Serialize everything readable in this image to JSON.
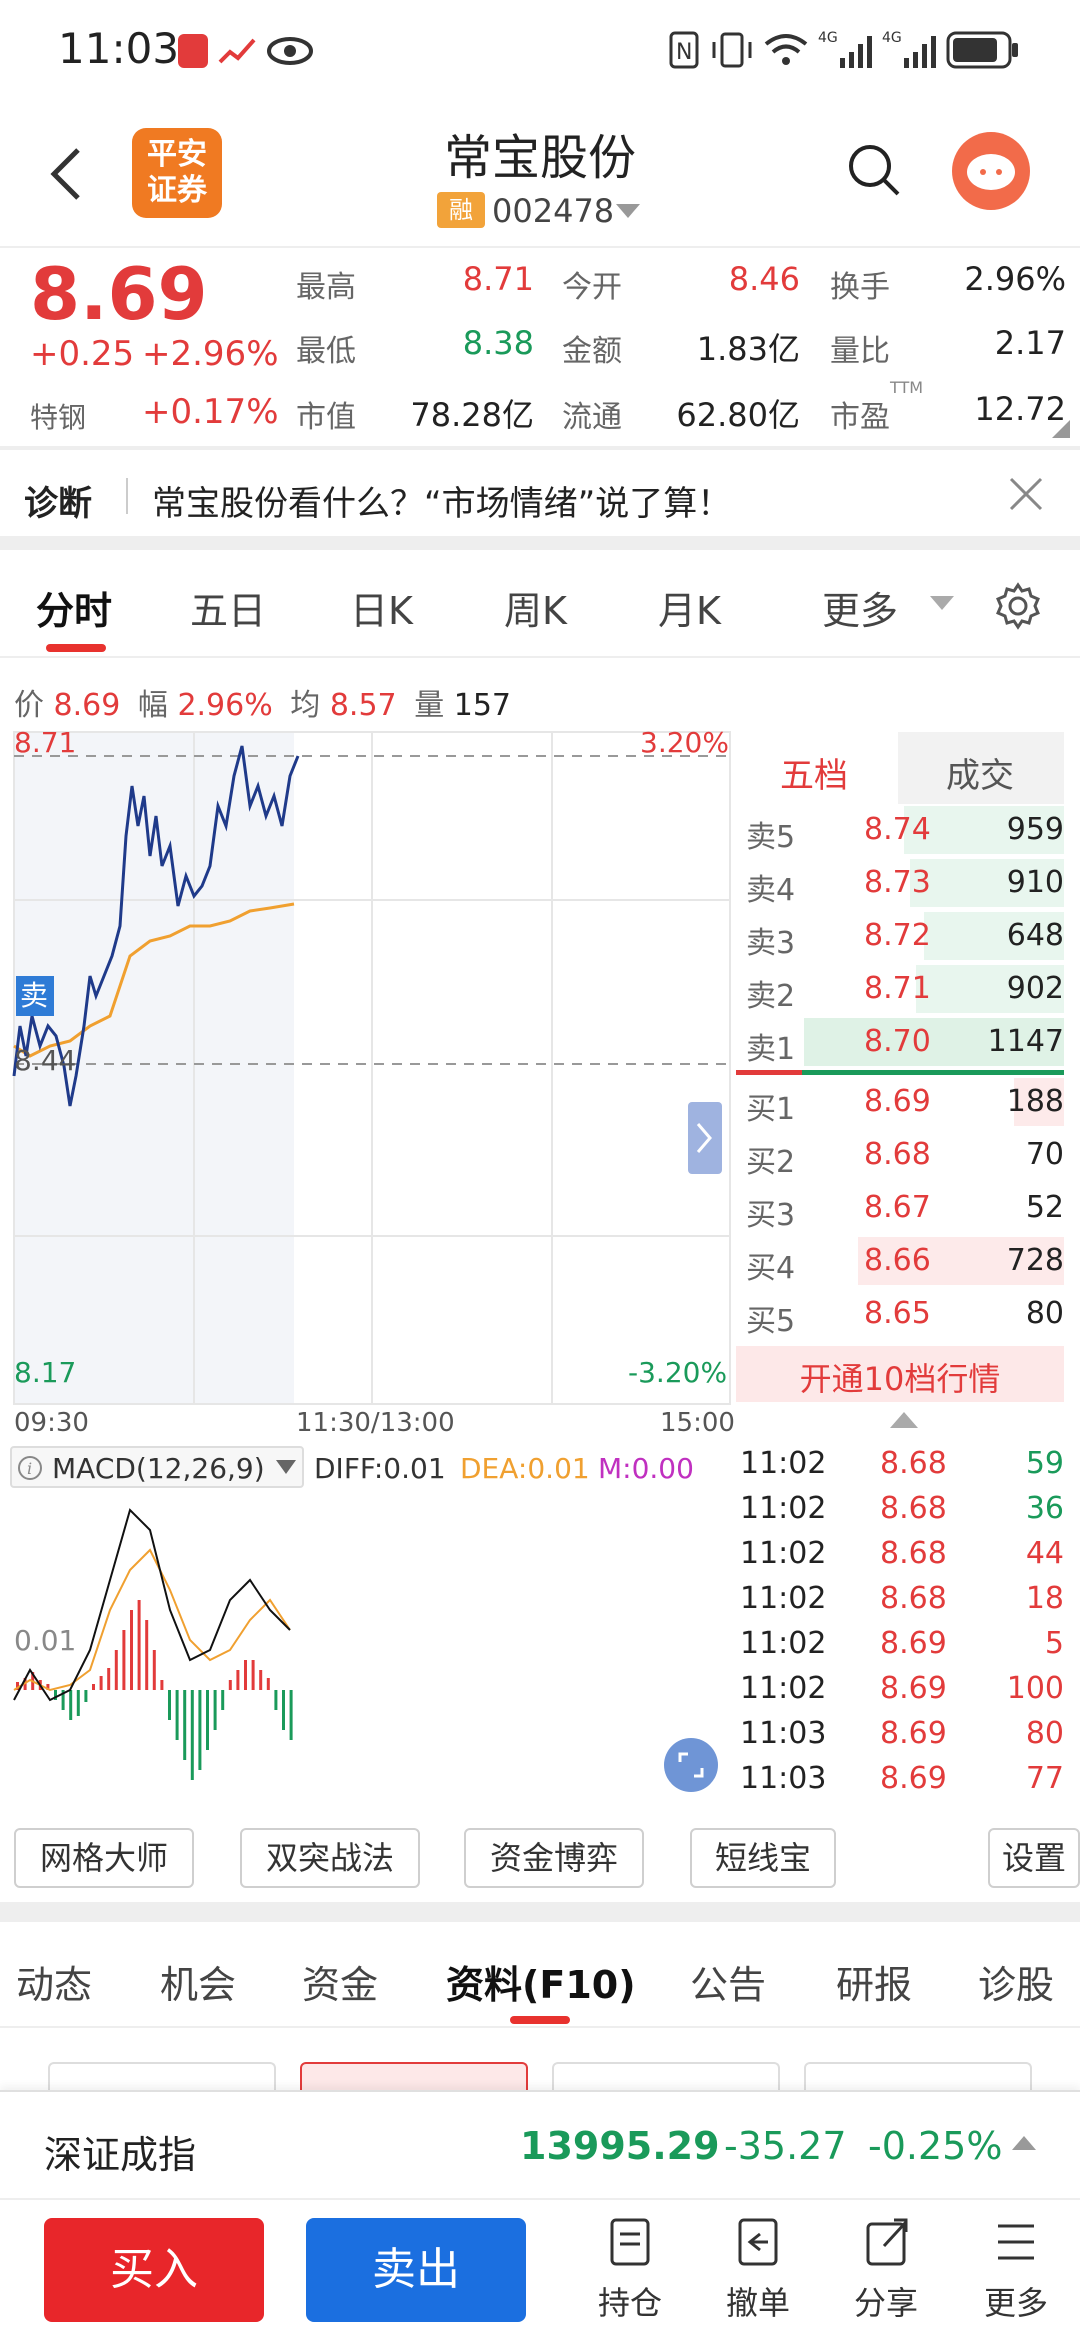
{
  "status_bar": {
    "time": "11:03"
  },
  "header": {
    "logo_line1": "平安",
    "logo_line2": "证券",
    "name": "常宝股份",
    "rong_tag": "融",
    "code": "002478"
  },
  "quote": {
    "price": "8.69",
    "change": "+0.25",
    "change_pct": "+2.96%",
    "sector_label": "特钢",
    "sector_pct": "+0.17%",
    "rows": [
      [
        {
          "label": "最高",
          "value": "8.71",
          "color": "red"
        },
        {
          "label": "今开",
          "value": "8.46",
          "color": "red"
        },
        {
          "label": "换手",
          "value": "2.96%",
          "color": "dark"
        }
      ],
      [
        {
          "label": "最低",
          "value": "8.38",
          "color": "green"
        },
        {
          "label": "金额",
          "value": "1.83亿",
          "color": "dark"
        },
        {
          "label": "量比",
          "value": "2.17",
          "color": "dark"
        }
      ],
      [
        {
          "label": "市值",
          "value": "78.28亿",
          "color": "dark"
        },
        {
          "label": "流通",
          "value": "62.80亿",
          "color": "dark"
        },
        {
          "label": "市盈",
          "value": "12.72",
          "color": "dark"
        }
      ]
    ],
    "ttm": "TTM"
  },
  "notice": {
    "label": "诊断",
    "text": "常宝股份看什么？“市场情绪”说了算！"
  },
  "chart_tabs": [
    "分时",
    "五日",
    "日K",
    "周K",
    "月K",
    "更多"
  ],
  "info_line": {
    "price_label": "价",
    "price": "8.69",
    "amp_label": "幅",
    "amp": "2.96%",
    "avg_label": "均",
    "avg": "8.57",
    "vol_label": "量",
    "vol": "157"
  },
  "chart": {
    "top_price": "8.71",
    "top_pct": "3.20%",
    "bottom_price": "8.17",
    "bottom_pct": "-3.20%",
    "mid_price": "8.44",
    "sell_tag": "卖",
    "times": [
      "09:30",
      "11:30/13:00",
      "15:00"
    ],
    "macd_title": "MACD(12,26,9)",
    "diff": "DIFF:0.01",
    "dea": "DEA:0.01",
    "m": "M:0.00",
    "macd_label": "0.01"
  },
  "orderbook": {
    "tab1": "五档",
    "tab2": "成交",
    "asks": [
      {
        "label": "卖5",
        "price": "8.74",
        "vol": "959"
      },
      {
        "label": "卖4",
        "price": "8.73",
        "vol": "910"
      },
      {
        "label": "卖3",
        "price": "8.72",
        "vol": "648"
      },
      {
        "label": "卖2",
        "price": "8.71",
        "vol": "902"
      },
      {
        "label": "卖1",
        "price": "8.70",
        "vol": "1147"
      }
    ],
    "bids": [
      {
        "label": "买1",
        "price": "8.69",
        "vol": "188"
      },
      {
        "label": "买2",
        "price": "8.68",
        "vol": "70"
      },
      {
        "label": "买3",
        "price": "8.67",
        "vol": "52"
      },
      {
        "label": "买4",
        "price": "8.66",
        "vol": "728"
      },
      {
        "label": "买5",
        "price": "8.65",
        "vol": "80"
      }
    ],
    "upgrade": "开通10档行情"
  },
  "trades": [
    {
      "time": "11:02",
      "price": "8.68",
      "vol": "59",
      "vcolor": "green"
    },
    {
      "time": "11:02",
      "price": "8.68",
      "vol": "36",
      "vcolor": "green"
    },
    {
      "time": "11:02",
      "price": "8.68",
      "vol": "44",
      "vcolor": "red"
    },
    {
      "time": "11:02",
      "price": "8.68",
      "vol": "18",
      "vcolor": "red"
    },
    {
      "time": "11:02",
      "price": "8.69",
      "vol": "5",
      "vcolor": "red"
    },
    {
      "time": "11:02",
      "price": "8.69",
      "vol": "100",
      "vcolor": "red"
    },
    {
      "time": "11:03",
      "price": "8.69",
      "vol": "80",
      "vcolor": "red"
    },
    {
      "time": "11:03",
      "price": "8.69",
      "vol": "77",
      "vcolor": "red"
    }
  ],
  "tools": [
    "网格大师",
    "双突战法",
    "资金博弈",
    "短线宝",
    "设置"
  ],
  "section_tabs": [
    "动态",
    "机会",
    "资金",
    "资料(F10)",
    "公告",
    "研报",
    "诊股"
  ],
  "index_bar": {
    "name": "深证成指",
    "value": "13995.29",
    "change": "-35.27",
    "pct": "-0.25%"
  },
  "bottom": {
    "buy": "买入",
    "sell": "卖出",
    "items": [
      "持仓",
      "撤单",
      "分享",
      "更多"
    ]
  },
  "colors": {
    "red": "#e23b3b",
    "green": "#1a9a5a",
    "accent": "#e8322e",
    "blue": "#1b6fe0",
    "line": "#1f3a8a",
    "avg": "#f0a030"
  }
}
